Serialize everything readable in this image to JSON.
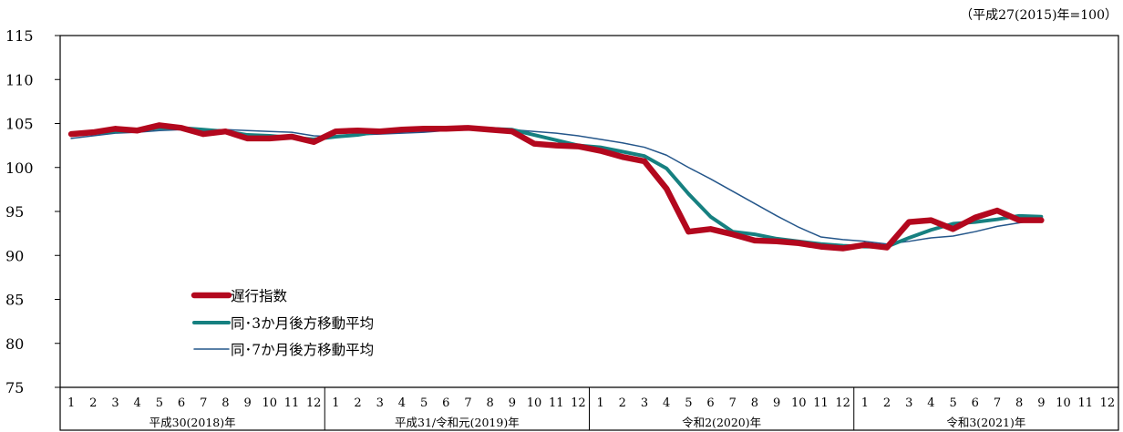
{
  "chart_data": {
    "type": "line",
    "unit_note": "（平成27(2015)年=100）",
    "ylim": [
      75,
      115
    ],
    "yticks": [
      75,
      80,
      85,
      90,
      95,
      100,
      105,
      110,
      115
    ],
    "grid": false,
    "legend_position": "bottom-left",
    "months": [
      "1",
      "2",
      "3",
      "4",
      "5",
      "6",
      "7",
      "8",
      "9",
      "10",
      "11",
      "12"
    ],
    "years": [
      "平成30(2018)年",
      "平成31/令和元(2019)年",
      "令和2(2020)年",
      "令和3(2021)年"
    ],
    "series": [
      {
        "name": "遅行指数",
        "color": "#b3081e",
        "values": [
          103.8,
          104.0,
          104.4,
          104.2,
          104.8,
          104.5,
          103.8,
          104.1,
          103.3,
          103.3,
          103.5,
          102.9,
          104.1,
          104.2,
          104.1,
          104.3,
          104.4,
          104.4,
          104.5,
          104.3,
          104.1,
          102.7,
          102.5,
          102.4,
          101.9,
          101.2,
          100.7,
          97.6,
          92.7,
          93.0,
          92.4,
          91.7,
          91.6,
          91.4,
          91.0,
          90.8,
          91.2,
          90.9,
          93.8,
          94.0,
          93.0,
          94.3,
          95.1,
          94.0,
          94.0
        ]
      },
      {
        "name": "同･3か月後方移動平均",
        "color": "#168080",
        "values": [
          103.8,
          103.9,
          104.1,
          104.2,
          104.5,
          104.5,
          104.3,
          104.1,
          103.7,
          103.6,
          103.4,
          103.2,
          103.5,
          103.7,
          104.1,
          104.2,
          104.3,
          104.4,
          104.4,
          104.4,
          104.3,
          103.7,
          103.1,
          102.5,
          102.3,
          101.8,
          101.3,
          99.9,
          97.0,
          94.4,
          92.7,
          92.4,
          91.9,
          91.6,
          91.3,
          91.1,
          91.0,
          91.0,
          92.0,
          92.9,
          93.6,
          93.8,
          94.1,
          94.5,
          94.4
        ]
      },
      {
        "name": "同･7か月後方移動平均",
        "color": "#24568a",
        "values": [
          103.3,
          103.6,
          103.9,
          104.0,
          104.2,
          104.3,
          104.3,
          104.3,
          104.2,
          104.1,
          104.0,
          103.6,
          103.5,
          103.7,
          103.8,
          103.9,
          104.0,
          104.2,
          104.3,
          104.3,
          104.3,
          104.1,
          103.9,
          103.6,
          103.2,
          102.8,
          102.3,
          101.4,
          100.0,
          98.7,
          97.3,
          95.9,
          94.5,
          93.2,
          92.1,
          91.8,
          91.6,
          91.3,
          91.6,
          92.0,
          92.2,
          92.7,
          93.3,
          93.7,
          94.1
        ]
      }
    ]
  }
}
